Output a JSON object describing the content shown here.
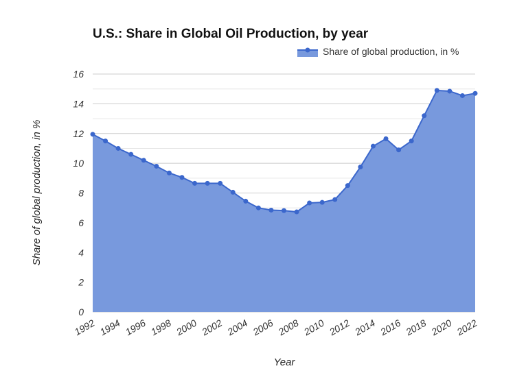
{
  "chart_data": {
    "type": "area",
    "title": "U.S.: Share in Global Oil Production, by year",
    "xlabel": "Year",
    "ylabel": "Share of global production, in %",
    "legend_position": "top-right",
    "grid": true,
    "ylim": [
      0,
      16
    ],
    "xlim": [
      1992,
      2022
    ],
    "y_ticks": [
      "0",
      "2",
      "4",
      "6",
      "8",
      "10",
      "12",
      "14",
      "16"
    ],
    "x_ticks": [
      "1992",
      "1994",
      "1996",
      "1998",
      "2000",
      "2002",
      "2004",
      "2006",
      "2008",
      "2010",
      "2012",
      "2014",
      "2016",
      "2018",
      "2020",
      "2022"
    ],
    "colors": {
      "fill": "#7899dd",
      "line": "#3b67cc",
      "grid": "#cccccc",
      "minor_grid": "#e6e6e6"
    },
    "series": [
      {
        "name": "Share of global production, in %",
        "x": [
          1992,
          1993,
          1994,
          1995,
          1996,
          1997,
          1998,
          1999,
          2000,
          2001,
          2002,
          2003,
          2004,
          2005,
          2006,
          2007,
          2008,
          2009,
          2010,
          2011,
          2012,
          2013,
          2014,
          2015,
          2016,
          2017,
          2018,
          2019,
          2020,
          2021,
          2022
        ],
        "values": [
          11.95,
          11.5,
          11.0,
          10.6,
          10.2,
          9.8,
          9.35,
          9.05,
          8.65,
          8.65,
          8.65,
          8.05,
          7.45,
          7.0,
          6.85,
          6.82,
          6.73,
          7.33,
          7.37,
          7.56,
          8.5,
          9.75,
          11.15,
          11.65,
          10.9,
          11.5,
          13.2,
          14.9,
          14.85,
          14.55,
          14.7
        ]
      }
    ]
  }
}
